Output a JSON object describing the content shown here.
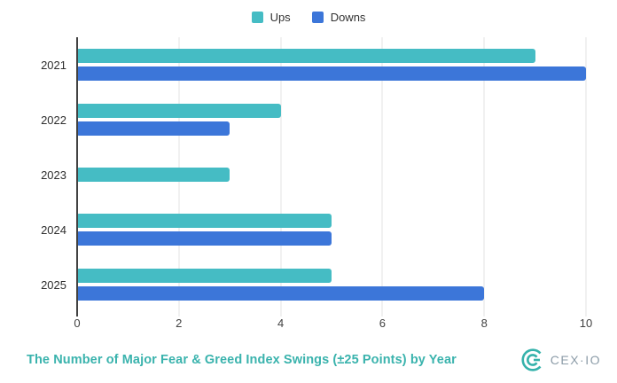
{
  "title": "The Number of Major Fear & Greed Index Swings (±25 Points) by Year",
  "legend": {
    "items": [
      {
        "label": "Ups",
        "color": "#45bcc4"
      },
      {
        "label": "Downs",
        "color": "#3c76d9"
      }
    ]
  },
  "logo": {
    "text": "CEX·IO",
    "mark_color": "#35b2ab"
  },
  "colors": {
    "accent_title": "#3ab3ad",
    "ups": "#45bcc4",
    "downs": "#3c76d9",
    "axis_line": "#424242",
    "gridline": "#e3e3e3",
    "tick_label": "#424242",
    "category_label": "#2e2e2e"
  },
  "chart_data": {
    "type": "bar",
    "orientation": "horizontal",
    "title": "The Number of Major Fear & Greed Index Swings (±25 Points) by Year",
    "categories": [
      "2021",
      "2022",
      "2023",
      "2024",
      "2025"
    ],
    "series": [
      {
        "name": "Ups",
        "color": "#45bcc4",
        "values": [
          9,
          4,
          3,
          5,
          5
        ]
      },
      {
        "name": "Downs",
        "color": "#3c76d9",
        "values": [
          10,
          3,
          0,
          5,
          8
        ]
      }
    ],
    "xlabel": "",
    "ylabel": "",
    "xlim": [
      0,
      10
    ],
    "xticks": [
      0,
      2,
      4,
      6,
      8,
      10
    ],
    "grid": "vertical",
    "legend_position": "top-center"
  }
}
